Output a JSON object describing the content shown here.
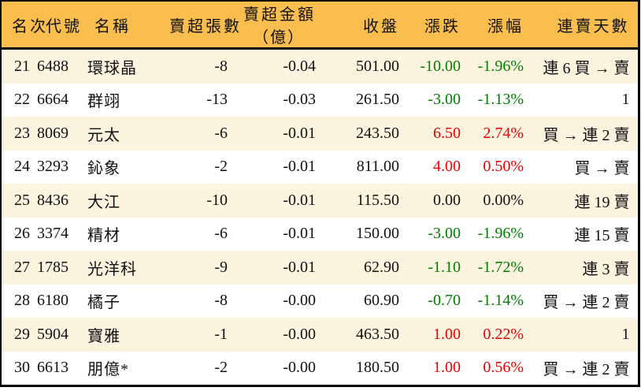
{
  "colors": {
    "header_bg": "#F9BE4E",
    "stripe_bg": "#FDF4DF",
    "up_red": "#EA0000",
    "down_green": "#007D00",
    "neutral": "#111111"
  },
  "table": {
    "headers": {
      "rank": "名次",
      "code": "代號",
      "name": "名稱",
      "sell_shares": "賣超張數",
      "sell_amount_line1": "賣超金額",
      "sell_amount_line2": "（億）",
      "close": "收盤",
      "change": "漲跌",
      "change_pct": "漲幅",
      "streak": "連賣天數"
    },
    "rows": [
      {
        "rank": "21",
        "code": "6488",
        "name": "環球晶",
        "sell_shares": "-8",
        "sell_amount": "-0.04",
        "close": "501.00",
        "change": "-10.00",
        "change_pct": "-1.96%",
        "streak": "連 6 買 → 賣"
      },
      {
        "rank": "22",
        "code": "6664",
        "name": "群翊",
        "sell_shares": "-13",
        "sell_amount": "-0.03",
        "close": "261.50",
        "change": "-3.00",
        "change_pct": "-1.13%",
        "streak": "1"
      },
      {
        "rank": "23",
        "code": "8069",
        "name": "元太",
        "sell_shares": "-6",
        "sell_amount": "-0.01",
        "close": "243.50",
        "change": "6.50",
        "change_pct": "2.74%",
        "streak": "買 → 連 2 賣"
      },
      {
        "rank": "24",
        "code": "3293",
        "name": "鈊象",
        "sell_shares": "-2",
        "sell_amount": "-0.01",
        "close": "811.00",
        "change": "4.00",
        "change_pct": "0.50%",
        "streak": "買 → 賣"
      },
      {
        "rank": "25",
        "code": "8436",
        "name": "大江",
        "sell_shares": "-10",
        "sell_amount": "-0.01",
        "close": "115.50",
        "change": "0.00",
        "change_pct": "0.00%",
        "streak": "連 19 賣"
      },
      {
        "rank": "26",
        "code": "3374",
        "name": "精材",
        "sell_shares": "-6",
        "sell_amount": "-0.01",
        "close": "150.00",
        "change": "-3.00",
        "change_pct": "-1.96%",
        "streak": "連 15 賣"
      },
      {
        "rank": "27",
        "code": "1785",
        "name": "光洋科",
        "sell_shares": "-9",
        "sell_amount": "-0.01",
        "close": "62.90",
        "change": "-1.10",
        "change_pct": "-1.72%",
        "streak": "連 3 賣"
      },
      {
        "rank": "28",
        "code": "6180",
        "name": "橘子",
        "sell_shares": "-8",
        "sell_amount": "-0.00",
        "close": "60.90",
        "change": "-0.70",
        "change_pct": "-1.14%",
        "streak": "買 → 連 2 賣"
      },
      {
        "rank": "29",
        "code": "5904",
        "name": "寶雅",
        "sell_shares": "-1",
        "sell_amount": "-0.00",
        "close": "463.50",
        "change": "1.00",
        "change_pct": "0.22%",
        "streak": "1"
      },
      {
        "rank": "30",
        "code": "6613",
        "name": "朋億*",
        "sell_shares": "-2",
        "sell_amount": "-0.00",
        "close": "180.50",
        "change": "1.00",
        "change_pct": "0.56%",
        "streak": "買 → 連 2 賣"
      }
    ]
  }
}
